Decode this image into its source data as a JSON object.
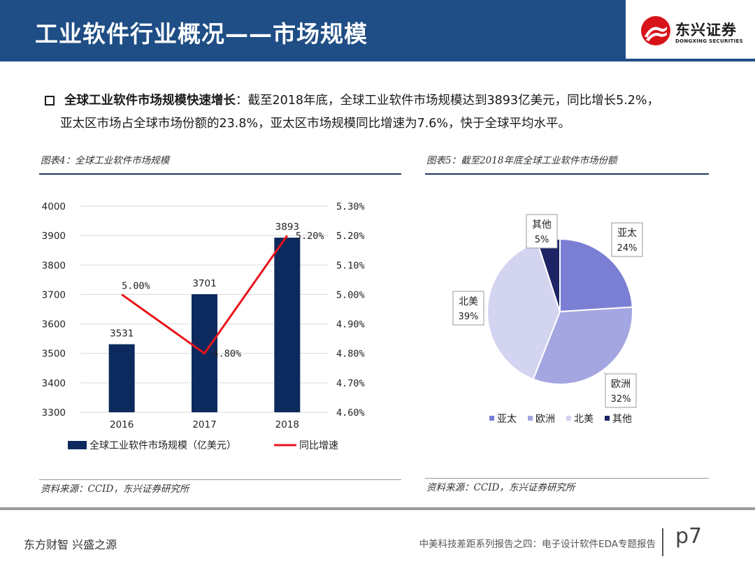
{
  "header": {
    "title": "工业软件行业概况——市场规模",
    "logo_cn": "东兴证券",
    "logo_en": "DONGXING SECURITIES"
  },
  "colors": {
    "header_blue": "#1f4e86",
    "bar_navy": "#0d2a5e",
    "line_red": "#e8141b",
    "pie_apac": "#7b7fd4",
    "pie_europe": "#a3a6e0",
    "pie_na": "#d3d4f0",
    "pie_other": "#1c2466"
  },
  "bullet": {
    "strong": "全球工业软件市场规模快速增长",
    "line1_rest": "：截至2018年底，全球工业软件市场规模达到3893亿美元，同比增长5.2%，",
    "line2": "亚太区市场占全球市场份额的23.8%，亚太区市场规模同比增速为7.6%，快于全球平均水平。"
  },
  "figure4": {
    "caption": "图表4：全球工业软件市场规模",
    "source": "资料来源：CCID，东兴证券研究所"
  },
  "figure5": {
    "caption": "图表5：截至2018年底全球工业软件市场份额",
    "source": "资料来源：CCID，东兴证券研究所"
  },
  "chart_data": [
    {
      "type": "bar",
      "categories": [
        "2016",
        "2017",
        "2018"
      ],
      "series": [
        {
          "name": "全球工业软件市场规模（亿美元）",
          "type": "bar",
          "axis": "left",
          "values": [
            3531,
            3701,
            3893
          ],
          "labels": [
            "3531",
            "3701",
            "3893"
          ]
        },
        {
          "name": "同比增速",
          "type": "line",
          "axis": "right",
          "values": [
            5.0,
            4.8,
            5.2
          ],
          "labels": [
            "5.00%",
            "4.80%",
            "5.20%"
          ]
        }
      ],
      "ylim": [
        3300,
        4000
      ],
      "y_ticks": [
        "3300",
        "3400",
        "3500",
        "3600",
        "3700",
        "3800",
        "3900",
        "4000"
      ],
      "y2lim": [
        4.6,
        5.3
      ],
      "y2_ticks": [
        "4.60%",
        "4.70%",
        "4.80%",
        "4.90%",
        "5.00%",
        "5.10%",
        "5.20%",
        "5.30%"
      ],
      "grid": true,
      "legend_position": "bottom"
    },
    {
      "type": "pie",
      "slices": [
        {
          "name": "亚太",
          "value": 24,
          "label": "24%"
        },
        {
          "name": "欧洲",
          "value": 32,
          "label": "32%"
        },
        {
          "name": "北美",
          "value": 39,
          "label": "39%"
        },
        {
          "name": "其他",
          "value": 5,
          "label": "5%"
        }
      ],
      "legend_position": "bottom"
    }
  ],
  "footer": {
    "left": "东方财智 兴盛之源",
    "right": "中美科技差距系列报告之四：电子设计软件EDA专题报告",
    "page": "p7"
  }
}
